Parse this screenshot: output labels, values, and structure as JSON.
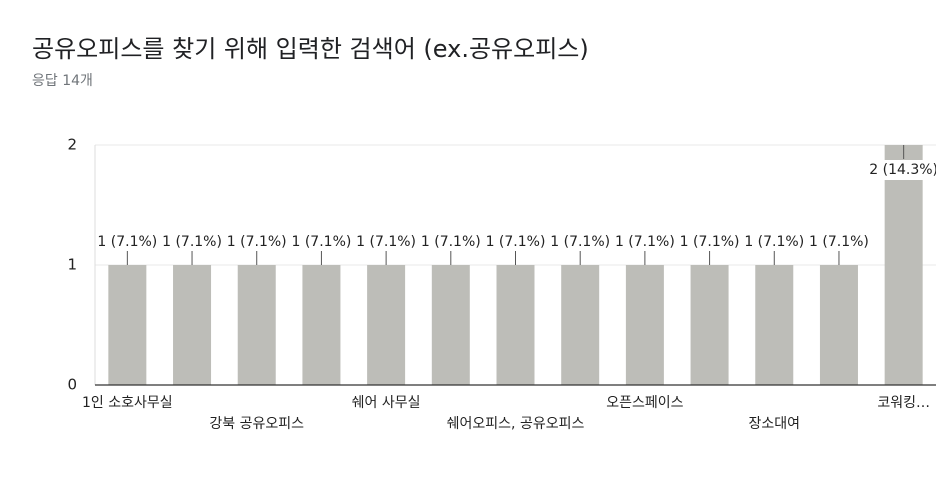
{
  "chart_data": {
    "type": "bar",
    "title": "공유오피스를 찾기 위해 입력한 검색어 (ex.공유오피스)",
    "subtitle": "응답 14개",
    "categories": [
      "1인 소호사무실",
      null,
      "강북 공유오피스",
      null,
      "쉐어 사무실",
      null,
      "쉐어오피스, 공유오피스",
      null,
      "오픈스페이스",
      null,
      "장소대여",
      null,
      "코워킹…"
    ],
    "values": [
      1,
      1,
      1,
      1,
      1,
      1,
      1,
      1,
      1,
      1,
      1,
      1,
      2
    ],
    "value_labels": [
      "1 (7.1%)",
      "1 (7.1%)",
      "1 (7.1%)",
      "1 (7.1%)",
      "1 (7.1%)",
      "1 (7.1%)",
      "1 (7.1%)",
      "1 (7.1%)",
      "1 (7.1%)",
      "1 (7.1%)",
      "1 (7.1%)",
      "1 (7.1%)",
      "2 (14.3%)"
    ],
    "color": "#bdbdb8",
    "ylim": [
      0,
      2
    ],
    "yticks": [
      0,
      1,
      2
    ],
    "grid": true
  }
}
